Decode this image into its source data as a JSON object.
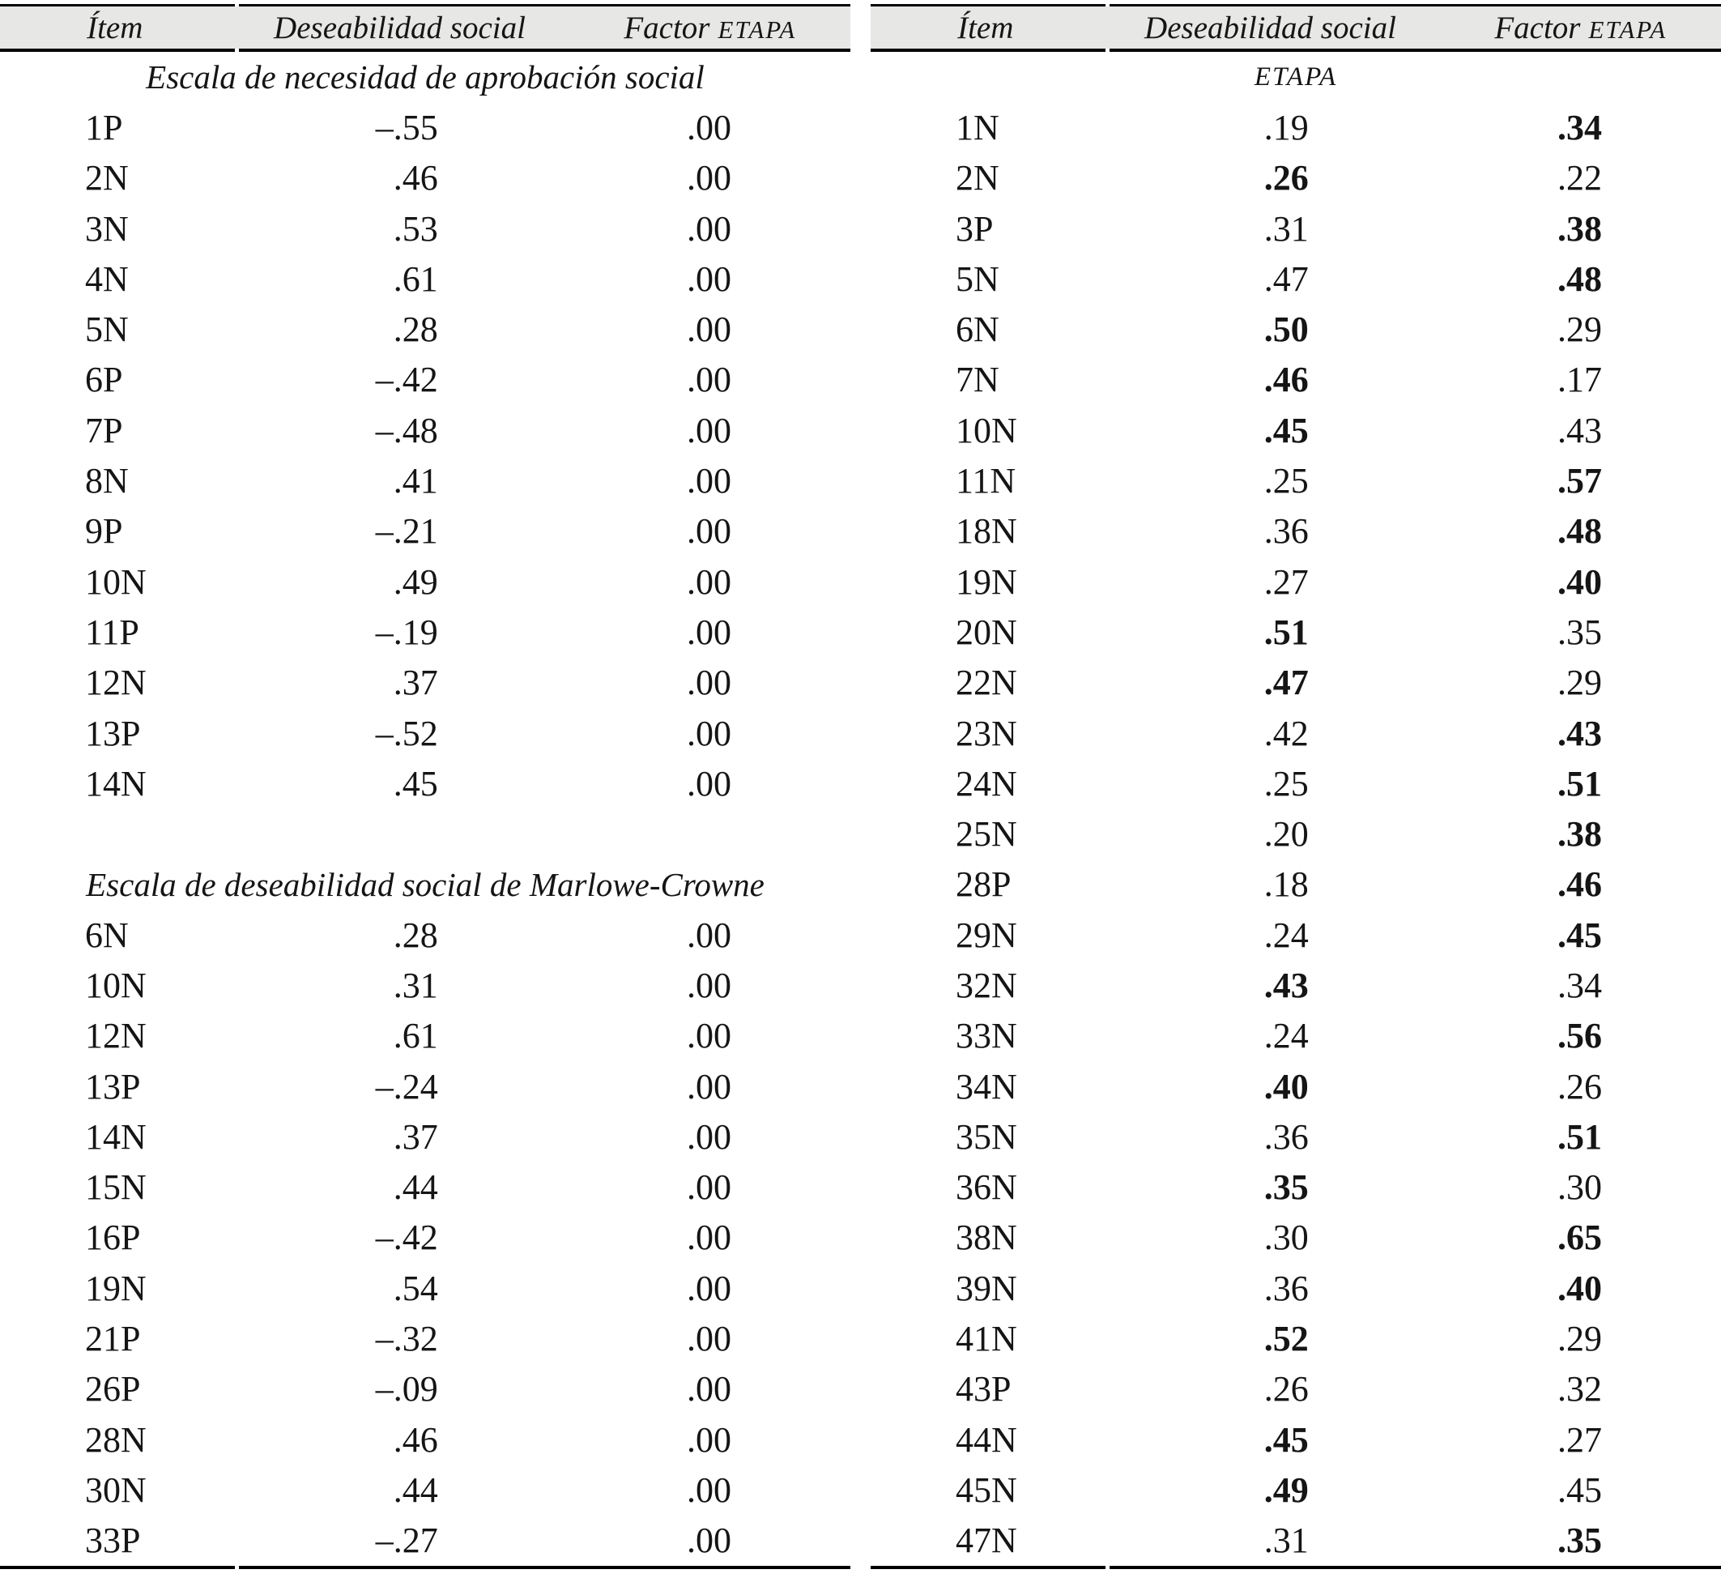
{
  "tables": [
    {
      "side": "left",
      "header": {
        "item": "Ítem",
        "social": "Deseabilidad social",
        "factor": "Factor",
        "factor_caps": "ETAPA"
      },
      "sections": [
        {
          "title": "Escala de necesidad de aprobación social",
          "caps": false,
          "gap_before": false,
          "rows": [
            [
              "1P",
              "–.55",
              0,
              ".00",
              0
            ],
            [
              "2N",
              ".46",
              0,
              ".00",
              0
            ],
            [
              "3N",
              ".53",
              0,
              ".00",
              0
            ],
            [
              "4N",
              ".61",
              0,
              ".00",
              0
            ],
            [
              "5N",
              ".28",
              0,
              ".00",
              0
            ],
            [
              "6P",
              "–.42",
              0,
              ".00",
              0
            ],
            [
              "7P",
              "–.48",
              0,
              ".00",
              0
            ],
            [
              "8N",
              ".41",
              0,
              ".00",
              0
            ],
            [
              "9P",
              "–.21",
              0,
              ".00",
              0
            ],
            [
              "10N",
              ".49",
              0,
              ".00",
              0
            ],
            [
              "11P",
              "–.19",
              0,
              ".00",
              0
            ],
            [
              "12N",
              ".37",
              0,
              ".00",
              0
            ],
            [
              "13P",
              "–.52",
              0,
              ".00",
              0
            ],
            [
              "14N",
              ".45",
              0,
              ".00",
              0
            ]
          ]
        },
        {
          "title": "Escala de deseabilidad social de Marlowe-Crowne",
          "caps": false,
          "gap_before": true,
          "rows": [
            [
              "6N",
              ".28",
              0,
              ".00",
              0
            ],
            [
              "10N",
              ".31",
              0,
              ".00",
              0
            ],
            [
              "12N",
              ".61",
              0,
              ".00",
              0
            ],
            [
              "13P",
              "–.24",
              0,
              ".00",
              0
            ],
            [
              "14N",
              ".37",
              0,
              ".00",
              0
            ],
            [
              "15N",
              ".44",
              0,
              ".00",
              0
            ],
            [
              "16P",
              "–.42",
              0,
              ".00",
              0
            ],
            [
              "19N",
              ".54",
              0,
              ".00",
              0
            ],
            [
              "21P",
              "–.32",
              0,
              ".00",
              0
            ],
            [
              "26P",
              "–.09",
              0,
              ".00",
              0
            ],
            [
              "28N",
              ".46",
              0,
              ".00",
              0
            ],
            [
              "30N",
              ".44",
              0,
              ".00",
              0
            ],
            [
              "33P",
              "–.27",
              0,
              ".00",
              0
            ]
          ]
        }
      ]
    },
    {
      "side": "right",
      "header": {
        "item": "Ítem",
        "social": "Deseabilidad social",
        "factor": "Factor",
        "factor_caps": "ETAPA"
      },
      "sections": [
        {
          "title": "ETAPA",
          "caps": true,
          "gap_before": false,
          "rows": [
            [
              "1N",
              ".19",
              0,
              ".34",
              1
            ],
            [
              "2N",
              ".26",
              1,
              ".22",
              0
            ],
            [
              "3P",
              ".31",
              0,
              ".38",
              1
            ],
            [
              "5N",
              ".47",
              0,
              ".48",
              1
            ],
            [
              "6N",
              ".50",
              1,
              ".29",
              0
            ],
            [
              "7N",
              ".46",
              1,
              ".17",
              0
            ],
            [
              "10N",
              ".45",
              1,
              ".43",
              0
            ],
            [
              "11N",
              ".25",
              0,
              ".57",
              1
            ],
            [
              "18N",
              ".36",
              0,
              ".48",
              1
            ],
            [
              "19N",
              ".27",
              0,
              ".40",
              1
            ],
            [
              "20N",
              ".51",
              1,
              ".35",
              0
            ],
            [
              "22N",
              ".47",
              1,
              ".29",
              0
            ],
            [
              "23N",
              ".42",
              0,
              ".43",
              1
            ],
            [
              "24N",
              ".25",
              0,
              ".51",
              1
            ],
            [
              "25N",
              ".20",
              0,
              ".38",
              1
            ],
            [
              "28P",
              ".18",
              0,
              ".46",
              1
            ],
            [
              "29N",
              ".24",
              0,
              ".45",
              1
            ],
            [
              "32N",
              ".43",
              1,
              ".34",
              0
            ],
            [
              "33N",
              ".24",
              0,
              ".56",
              1
            ],
            [
              "34N",
              ".40",
              1,
              ".26",
              0
            ],
            [
              "35N",
              ".36",
              0,
              ".51",
              1
            ],
            [
              "36N",
              ".35",
              1,
              ".30",
              0
            ],
            [
              "38N",
              ".30",
              0,
              ".65",
              1
            ],
            [
              "39N",
              ".36",
              0,
              ".40",
              1
            ],
            [
              "41N",
              ".52",
              1,
              ".29",
              0
            ],
            [
              "43P",
              ".26",
              0,
              ".32",
              0
            ],
            [
              "44N",
              ".45",
              1,
              ".27",
              0
            ],
            [
              "45N",
              ".49",
              1,
              ".45",
              0
            ],
            [
              "47N",
              ".31",
              0,
              ".35",
              1
            ]
          ]
        }
      ]
    }
  ]
}
